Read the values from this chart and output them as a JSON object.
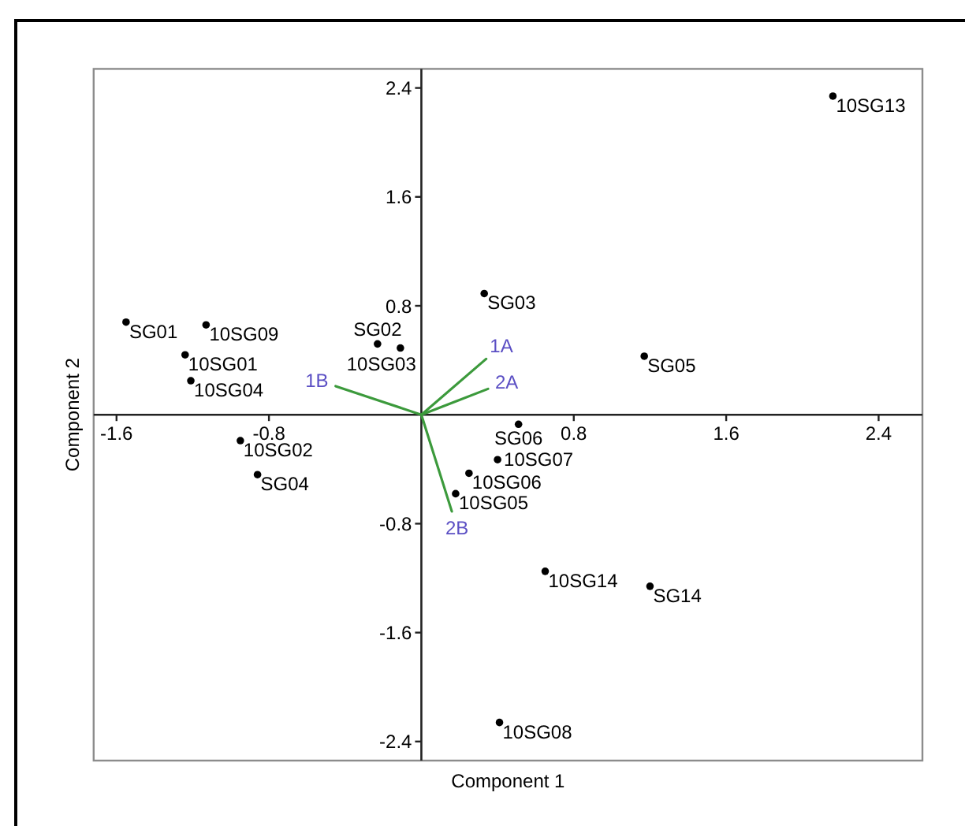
{
  "chart_data": {
    "type": "scatter",
    "xlabel": "Component 1",
    "ylabel": "Component 2",
    "xlim": [
      -1.72,
      2.63
    ],
    "ylim": [
      -2.54,
      2.54
    ],
    "xticks": [
      -1.6,
      -0.8,
      0.8,
      1.6,
      2.4
    ],
    "yticks": [
      -2.4,
      -1.6,
      -0.8,
      0.8,
      1.6,
      2.4
    ],
    "marker": "circle",
    "series": [
      {
        "color": "#000000",
        "x": [
          2.16,
          0.33,
          -1.55,
          -1.13,
          -0.23,
          -0.11,
          -1.24,
          1.17,
          -1.21,
          0.51,
          -0.95,
          0.25,
          0.4,
          -0.86,
          0.18,
          0.65,
          1.2,
          0.41
        ],
        "values": [
          2.34,
          0.89,
          0.68,
          0.66,
          0.52,
          0.49,
          0.44,
          0.43,
          0.25,
          -0.07,
          -0.19,
          -0.43,
          -0.33,
          -0.44,
          -0.58,
          -1.15,
          -1.26,
          -2.26
        ]
      },
      {
        "type": "line",
        "name": "1A",
        "color": "#3c9a3c",
        "marker": "none",
        "x": [
          0,
          0.34
        ],
        "values": [
          0,
          0.41
        ]
      },
      {
        "type": "line",
        "name": "2A",
        "color": "#3c9a3c",
        "marker": "none",
        "x": [
          0,
          0.35
        ],
        "values": [
          0,
          0.19
        ]
      },
      {
        "type": "line",
        "name": "1B",
        "color": "#3c9a3c",
        "marker": "none",
        "x": [
          0,
          -0.45
        ],
        "values": [
          0,
          0.21
        ]
      },
      {
        "type": "line",
        "name": "2B",
        "color": "#3c9a3c",
        "marker": "none",
        "x": [
          0,
          0.16
        ],
        "values": [
          0,
          -0.71
        ]
      }
    ],
    "annotations": [
      {
        "text": "10SG13",
        "x": 2.16,
        "y": 2.34
      },
      {
        "text": "SG03",
        "x": 0.33,
        "y": 0.89
      },
      {
        "text": "SG01",
        "x": -1.55,
        "y": 0.68
      },
      {
        "text": "10SG09",
        "x": -1.13,
        "y": 0.66
      },
      {
        "text": "SG02",
        "x": -0.23,
        "y": 0.52
      },
      {
        "text": "10SG03",
        "x": -0.11,
        "y": 0.49
      },
      {
        "text": "10SG01",
        "x": -1.24,
        "y": 0.44
      },
      {
        "text": "SG05",
        "x": 1.17,
        "y": 0.43
      },
      {
        "text": "10SG04",
        "x": -1.21,
        "y": 0.25
      },
      {
        "text": "SG06",
        "x": 0.51,
        "y": -0.07
      },
      {
        "text": "10SG02",
        "x": -0.95,
        "y": -0.19
      },
      {
        "text": "10SG06",
        "x": 0.25,
        "y": -0.43
      },
      {
        "text": "10SG07",
        "x": 0.4,
        "y": -0.33
      },
      {
        "text": "SG04",
        "x": -0.86,
        "y": -0.44
      },
      {
        "text": "10SG05",
        "x": 0.18,
        "y": -0.58
      },
      {
        "text": "10SG14",
        "x": 0.65,
        "y": -1.15
      },
      {
        "text": "SG14",
        "x": 1.2,
        "y": -1.26
      },
      {
        "text": "10SG08",
        "x": 0.41,
        "y": -2.26
      }
    ]
  }
}
